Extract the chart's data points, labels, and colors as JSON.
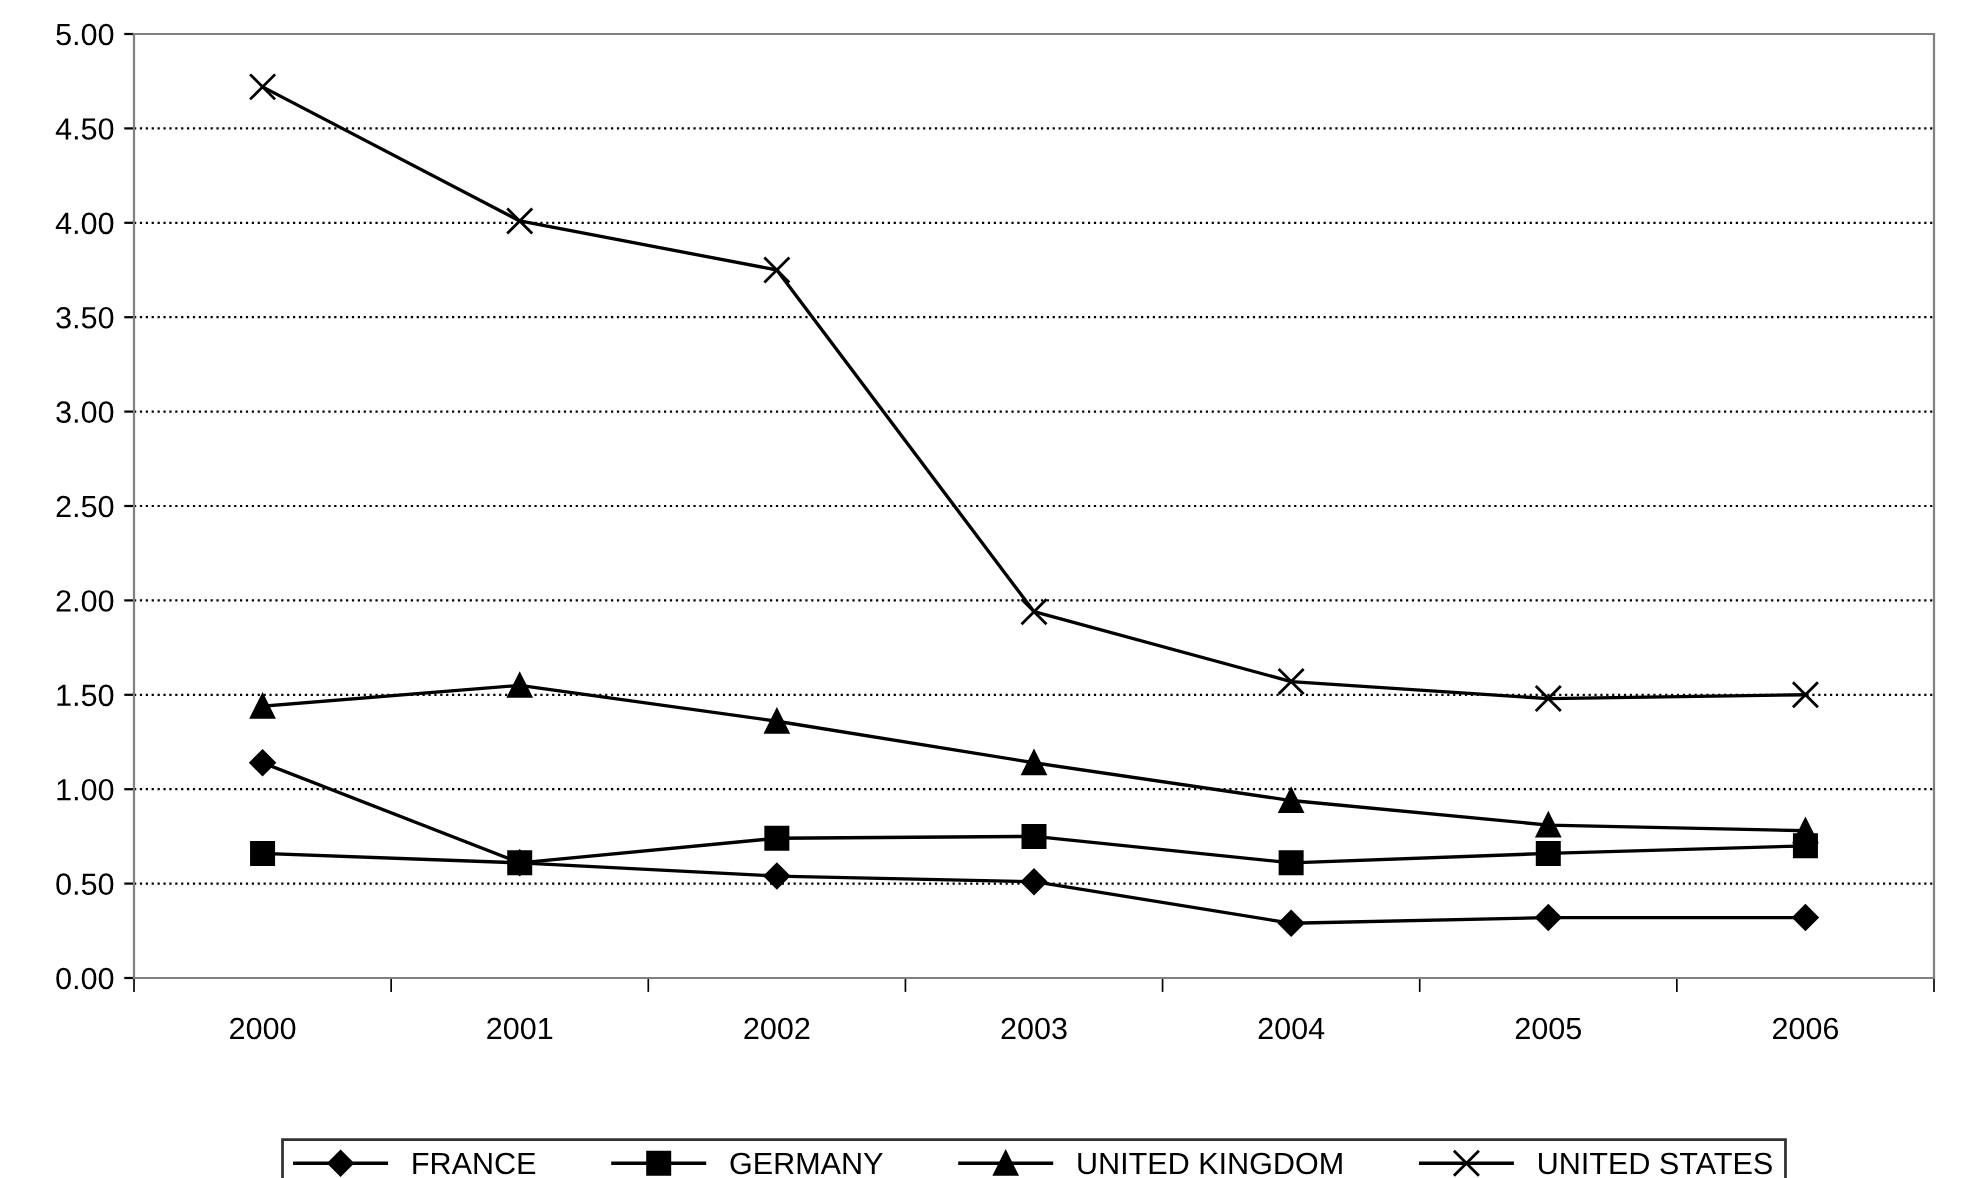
{
  "chart_data": {
    "type": "line",
    "categories": [
      "2000",
      "2001",
      "2002",
      "2003",
      "2004",
      "2005",
      "2006"
    ],
    "series": [
      {
        "name": "FRANCE",
        "color": "#000000",
        "marker": "diamond",
        "values": [
          1.14,
          0.61,
          0.54,
          0.51,
          0.29,
          0.32,
          0.32
        ]
      },
      {
        "name": "GERMANY",
        "color": "#000000",
        "marker": "square",
        "values": [
          0.66,
          0.61,
          0.74,
          0.75,
          0.61,
          0.66,
          0.7
        ]
      },
      {
        "name": "UNITED KINGDOM",
        "color": "#000000",
        "marker": "triangle",
        "values": [
          1.44,
          1.55,
          1.36,
          1.14,
          0.94,
          0.81,
          0.78
        ]
      },
      {
        "name": "UNITED STATES",
        "color": "#000000",
        "marker": "cross",
        "values": [
          4.72,
          4.01,
          3.75,
          1.94,
          1.57,
          1.48,
          1.5
        ]
      }
    ],
    "ylim": [
      0,
      5
    ],
    "yticks": [
      {
        "value": 0,
        "label": "0.00"
      },
      {
        "value": 0.5,
        "label": "0.50"
      },
      {
        "value": 1,
        "label": "1.00"
      },
      {
        "value": 1.5,
        "label": "1.50"
      },
      {
        "value": 2,
        "label": "2.00"
      },
      {
        "value": 2.5,
        "label": "2.50"
      },
      {
        "value": 3,
        "label": "3.00"
      },
      {
        "value": 3.5,
        "label": "3.50"
      },
      {
        "value": 4,
        "label": "4.00"
      },
      {
        "value": 4.5,
        "label": "4.50"
      },
      {
        "value": 5,
        "label": "5.00"
      }
    ],
    "grid": "y",
    "legend": "bottom",
    "line_style": "solid"
  }
}
